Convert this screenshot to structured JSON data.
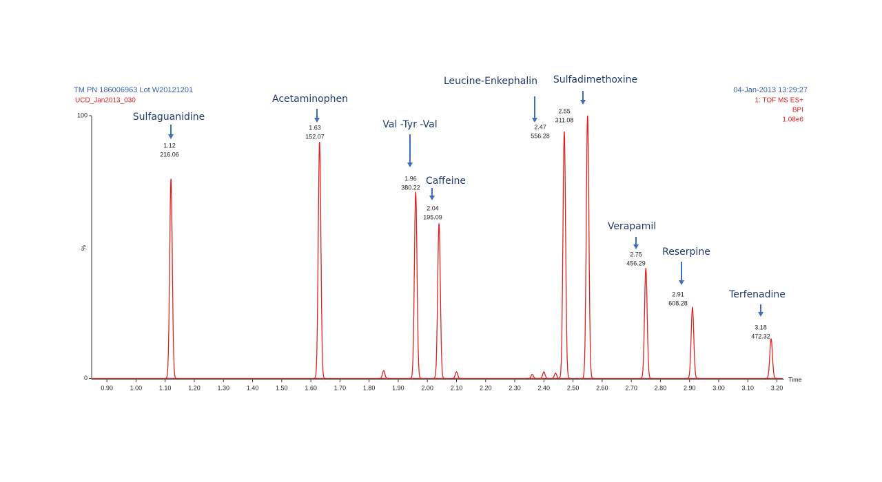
{
  "chart_data": {
    "type": "chromatogram",
    "header_left": [
      "TM PN 186006963 Lot W20121201",
      "UCD_Jan2013_030"
    ],
    "header_right": [
      "04-Jan-2013  13:29:27",
      "1: TOF MS ES+",
      "BPI",
      "1.08e6"
    ],
    "xlabel": "Time",
    "ylabel": "%",
    "xlim": [
      0.85,
      3.22
    ],
    "ylim": [
      0,
      100
    ],
    "yticks": [
      0,
      100
    ],
    "xticks": [
      {
        "value": 0.9,
        "label": "0.90"
      },
      {
        "value": 1.0,
        "label": "1.00"
      },
      {
        "value": 1.1,
        "label": "1.10"
      },
      {
        "value": 1.2,
        "label": "1.20"
      },
      {
        "value": 1.3,
        "label": "1.30"
      },
      {
        "value": 1.4,
        "label": "1.40"
      },
      {
        "value": 1.5,
        "label": "1.50"
      },
      {
        "value": 1.6,
        "label": "1.60"
      },
      {
        "value": 1.7,
        "label": "1.70"
      },
      {
        "value": 1.8,
        "label": "1.80"
      },
      {
        "value": 1.9,
        "label": "1.90"
      },
      {
        "value": 2.0,
        "label": "2.00"
      },
      {
        "value": 2.1,
        "label": "2.10"
      },
      {
        "value": 2.2,
        "label": "2.20"
      },
      {
        "value": 2.3,
        "label": "2.30"
      },
      {
        "value": 2.4,
        "label": "2.40"
      },
      {
        "value": 2.5,
        "label": "2.50"
      },
      {
        "value": 2.6,
        "label": "2.60"
      },
      {
        "value": 2.7,
        "label": "2.70"
      },
      {
        "value": 2.8,
        "label": "2.80"
      },
      {
        "value": 2.9,
        "label": "2.90"
      },
      {
        "value": 3.0,
        "label": "3.00"
      },
      {
        "value": 3.1,
        "label": "3.10"
      },
      {
        "value": 3.2,
        "label": "3.20"
      }
    ],
    "color": "#e02020",
    "compounds": [
      "Sulfaguanidine",
      "Acetaminophen",
      "Val  -Tyr  -Val",
      "Caffeine",
      "Leucine-Enkephalin",
      "Sulfadimethoxine",
      "Verapamil",
      "Reserpine",
      "Terfenadine"
    ],
    "x": [
      1.12,
      1.63,
      1.96,
      2.04,
      2.47,
      2.55,
      2.75,
      2.91,
      3.18
    ],
    "values": [
      76,
      90,
      71,
      59,
      94,
      100,
      42,
      27,
      15
    ],
    "masses": [
      216.06,
      152.07,
      380.22,
      195.09,
      556.28,
      311.08,
      456.29,
      608.28,
      472.32
    ],
    "minor_x": [
      1.85,
      2.1,
      2.36,
      2.4,
      2.44
    ],
    "minor_values": [
      3,
      2.5,
      1.5,
      2.5,
      2
    ]
  }
}
